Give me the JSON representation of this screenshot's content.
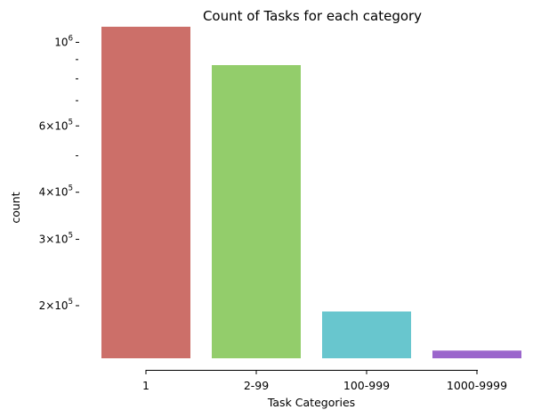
{
  "chart_data": {
    "type": "bar",
    "title": "Count of Tasks for each category",
    "xlabel": "Task Categories",
    "ylabel": "count",
    "yscale": "log",
    "ylim": [
      145000,
      1100000
    ],
    "grid": false,
    "legend": "none",
    "categories": [
      "1",
      "2-99",
      "100-999",
      "1000-9999"
    ],
    "values": [
      1100000,
      870000,
      193000,
      152000
    ],
    "colors": [
      "#cc6f69",
      "#93cd6b",
      "#68c6ce",
      "#9b66cc"
    ],
    "major_ticks": [
      {
        "value": 200000,
        "mantissa": "2",
        "base": "10",
        "exp": "5"
      },
      {
        "value": 300000,
        "mantissa": "3",
        "base": "10",
        "exp": "5"
      },
      {
        "value": 400000,
        "mantissa": "4",
        "base": "10",
        "exp": "5"
      },
      {
        "value": 600000,
        "mantissa": "6",
        "base": "10",
        "exp": "5"
      },
      {
        "value": 1000000,
        "mantissa": "",
        "base": "10",
        "exp": "6"
      }
    ],
    "minor_tick_values": [
      500000,
      700000,
      800000,
      900000
    ]
  }
}
